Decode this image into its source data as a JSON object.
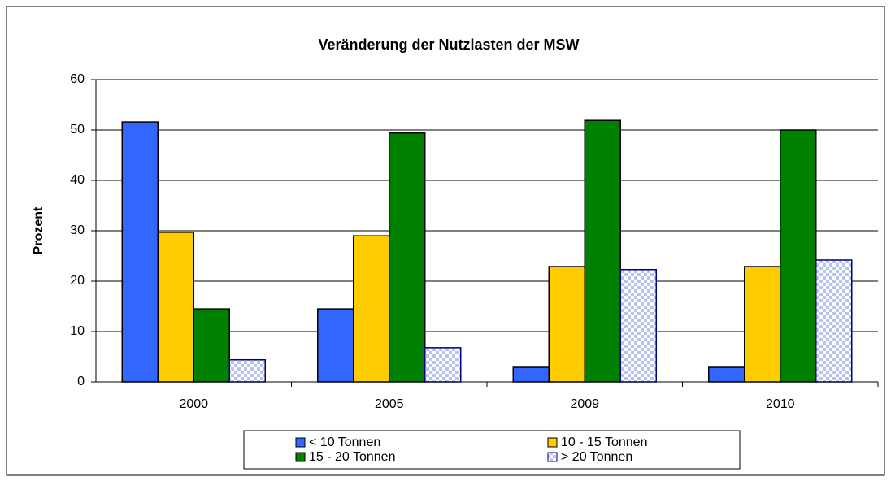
{
  "chart_data": {
    "type": "bar",
    "title": "Veränderung der Nutzlasten der MSW",
    "y_label": "Prozent",
    "categories": [
      "2000",
      "2005",
      "2009",
      "2010"
    ],
    "series": [
      {
        "name": "< 10 Tonnen",
        "color": "#3366ff",
        "values": [
          51.6,
          14.5,
          2.9,
          2.9
        ]
      },
      {
        "name": "10 - 15 Tonnen",
        "color": "#ffcc00",
        "values": [
          29.7,
          29.0,
          22.9,
          22.9
        ]
      },
      {
        "name": "15 - 20 Tonnen",
        "color": "#008000",
        "values": [
          14.5,
          49.4,
          51.9,
          50.0
        ]
      },
      {
        "name": "> 20 Tonnen",
        "color": "checker",
        "values": [
          4.4,
          6.8,
          22.3,
          24.2
        ]
      }
    ],
    "ylim": [
      0,
      60
    ],
    "yticks": [
      0,
      10,
      20,
      30,
      40,
      50,
      60
    ],
    "grid": true,
    "legend": "bottom"
  }
}
